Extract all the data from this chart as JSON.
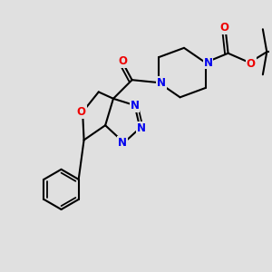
{
  "background_color": "#e0e0e0",
  "bond_color": "#000000",
  "bond_width": 1.5,
  "atom_colors": {
    "N": "#0000ee",
    "O": "#ee0000"
  },
  "fig_size": [
    3.0,
    3.0
  ],
  "dpi": 100,
  "xlim": [
    0,
    10
  ],
  "ylim": [
    0,
    10
  ]
}
